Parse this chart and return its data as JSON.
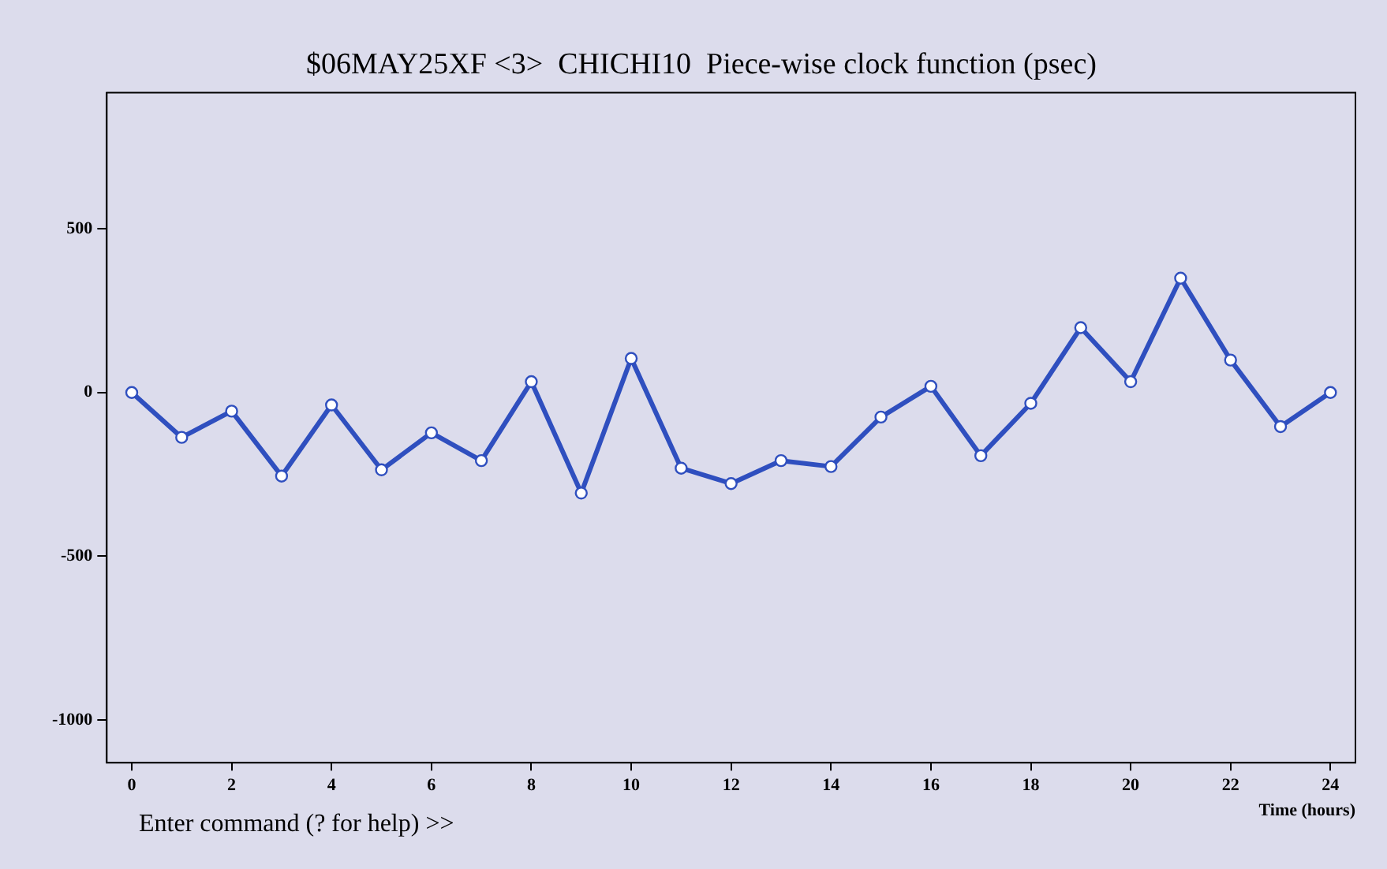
{
  "chart_data": {
    "type": "line",
    "title": "$06MAY25XF <3>  CHICHI10  Piece-wise clock function (psec)",
    "xlabel": "Time (hours)",
    "annotations": [
      "Enter command (? for help) >>"
    ],
    "x": [
      0,
      1,
      2,
      3,
      4,
      5,
      6,
      7,
      8,
      9,
      10,
      11,
      12,
      13,
      14,
      15,
      16,
      17,
      18,
      19,
      20,
      21,
      22,
      23,
      24
    ],
    "series": [
      {
        "color": "#2f4fbf",
        "values": [
          0,
          -137,
          -57,
          -255,
          -38,
          -236,
          -123,
          -208,
          33,
          -307,
          104,
          -231,
          -278,
          -208,
          -226,
          -75,
          19,
          -193,
          -33,
          198,
          33,
          349,
          99,
          -104,
          0
        ]
      }
    ],
    "xlim": [
      -0.5,
      24.5
    ],
    "xticks": [
      0,
      2,
      4,
      6,
      8,
      10,
      12,
      14,
      16,
      18,
      20,
      22,
      24
    ],
    "ylim": [
      -1130,
      915
    ],
    "yticks": [
      -1000,
      -500,
      0,
      500
    ],
    "grid": false,
    "legend": false,
    "marker": "circle",
    "line_style": "solid"
  }
}
